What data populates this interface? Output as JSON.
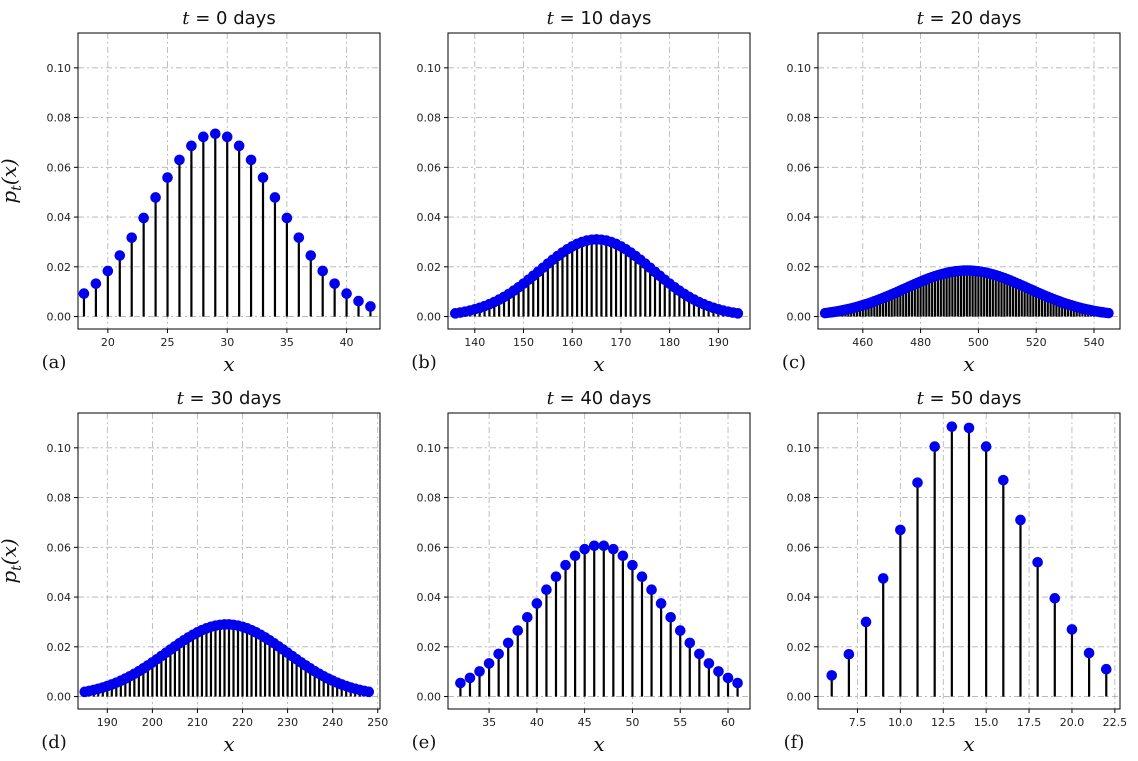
{
  "chart_data": [
    {
      "type": "stem",
      "panel": "(a)",
      "title": "t = 0 days",
      "xlabel": "x",
      "ylabel": "p_t(x)",
      "xlim": [
        17.5,
        42.8
      ],
      "ylim": [
        -0.005,
        0.114
      ],
      "xticks": [
        20,
        25,
        30,
        35,
        40
      ],
      "yticks": [
        0.0,
        0.02,
        0.04,
        0.06,
        0.08,
        0.1
      ],
      "grid": true,
      "dist": {
        "x_start": 18,
        "x_end": 42,
        "step": 1,
        "mean": 29,
        "sd": 5.4,
        "peak": 0.0735
      }
    },
    {
      "type": "stem",
      "panel": "(b)",
      "title": "t = 10 days",
      "xlabel": "x",
      "ylabel": "",
      "xlim": [
        134.5,
        196.5
      ],
      "ylim": [
        -0.005,
        0.114
      ],
      "xticks": [
        140,
        150,
        160,
        170,
        180,
        190
      ],
      "yticks": [
        0.0,
        0.02,
        0.04,
        0.06,
        0.08,
        0.1
      ],
      "grid": true,
      "dist": {
        "x_start": 136,
        "x_end": 194,
        "step": 1,
        "mean": 165,
        "sd": 11.5,
        "peak": 0.031
      }
    },
    {
      "type": "stem",
      "panel": "(c)",
      "title": "t = 20 days",
      "xlabel": "x",
      "ylabel": "",
      "xlim": [
        444.5,
        549
      ],
      "ylim": [
        -0.005,
        0.114
      ],
      "xticks": [
        460,
        480,
        500,
        520,
        540
      ],
      "yticks": [
        0.0,
        0.02,
        0.04,
        0.06,
        0.08,
        0.1
      ],
      "grid": true,
      "dist": {
        "x_start": 447,
        "x_end": 545,
        "step": 1,
        "mean": 496,
        "sd": 21.5,
        "peak": 0.0185
      }
    },
    {
      "type": "stem",
      "panel": "(d)",
      "title": "t = 30 days",
      "xlabel": "x",
      "ylabel": "p_t(x)",
      "xlim": [
        183.5,
        250.5
      ],
      "ylim": [
        -0.005,
        0.114
      ],
      "xticks": [
        190,
        200,
        210,
        220,
        230,
        240,
        250
      ],
      "yticks": [
        0.0,
        0.02,
        0.04,
        0.06,
        0.08,
        0.1
      ],
      "grid": true,
      "dist": {
        "x_start": 185,
        "x_end": 248,
        "step": 1,
        "mean": 216.5,
        "sd": 13.5,
        "peak": 0.029
      }
    },
    {
      "type": "stem",
      "panel": "(e)",
      "title": "t = 40 days",
      "xlabel": "x",
      "ylabel": "",
      "xlim": [
        30.7,
        62.3
      ],
      "ylim": [
        -0.005,
        0.114
      ],
      "xticks": [
        35,
        40,
        45,
        50,
        55,
        60
      ],
      "yticks": [
        0.0,
        0.02,
        0.04,
        0.06,
        0.08,
        0.1
      ],
      "grid": true,
      "dist": {
        "x_start": 32,
        "x_end": 61,
        "step": 1,
        "mean": 46.5,
        "sd": 6.6,
        "peak": 0.0608
      }
    },
    {
      "type": "stem",
      "panel": "(f)",
      "title": "t = 50 days",
      "xlabel": "x",
      "ylabel": "",
      "xlim": [
        5.2,
        22.8
      ],
      "ylim": [
        -0.005,
        0.114
      ],
      "xticks": [
        7.5,
        10.0,
        12.5,
        15.0,
        17.5,
        20.0,
        22.5
      ],
      "yticks": [
        0.0,
        0.02,
        0.04,
        0.06,
        0.08,
        0.1
      ],
      "grid": true,
      "x": [
        6,
        7,
        8,
        9,
        10,
        11,
        12,
        13,
        14,
        15,
        16,
        17,
        18,
        19,
        20,
        21,
        22
      ],
      "y": [
        0.0085,
        0.017,
        0.03,
        0.0475,
        0.067,
        0.086,
        0.1005,
        0.1085,
        0.108,
        0.1005,
        0.087,
        0.071,
        0.054,
        0.0395,
        0.027,
        0.0175,
        0.011
      ]
    }
  ]
}
